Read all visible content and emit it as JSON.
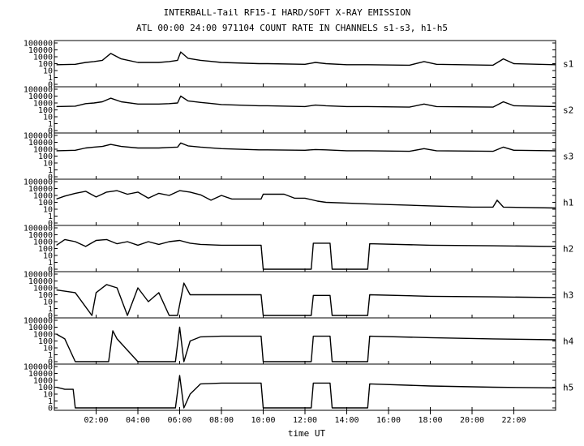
{
  "title": "INTERBALL-Tail RF15-I HARD/SOFT X-RAY EMISSION",
  "subtitle": "ATL 00:00 24:00 971104  COUNT RATE IN CHANNELS s1-s3, h1-h5",
  "chart_data": {
    "type": "line",
    "title": "INTERBALL-Tail RF15-I HARD/SOFT X-RAY EMISSION",
    "subtitle": "ATL 00:00 24:00 971104  COUNT RATE IN CHANNELS s1-s3, h1-h5",
    "xlabel": "time UT",
    "x_unit": "hours UT",
    "xlim": [
      0,
      24
    ],
    "x_ticks": [
      {
        "value": 2,
        "label": "02:00"
      },
      {
        "value": 4,
        "label": "04:00"
      },
      {
        "value": 6,
        "label": "06:00"
      },
      {
        "value": 8,
        "label": "08:00"
      },
      {
        "value": 10,
        "label": "10:00"
      },
      {
        "value": 12,
        "label": "12:00"
      },
      {
        "value": 14,
        "label": "14:00"
      },
      {
        "value": 16,
        "label": "16:00"
      },
      {
        "value": 18,
        "label": "18:00"
      },
      {
        "value": 20,
        "label": "20:00"
      },
      {
        "value": 22,
        "label": "22:00"
      }
    ],
    "y_scale": "log",
    "ylim": [
      0,
      100000
    ],
    "y_ticks": [
      {
        "value": 100000,
        "label": "100000"
      },
      {
        "value": 10000,
        "label": "10000"
      },
      {
        "value": 1000,
        "label": "1000"
      },
      {
        "value": 100,
        "label": "100"
      },
      {
        "value": 10,
        "label": "10"
      },
      {
        "value": 1,
        "label": "1"
      },
      {
        "value": 0,
        "label": "0"
      }
    ],
    "grid": false,
    "series": [
      {
        "name": "s1",
        "x": [
          0.1,
          1,
          1.5,
          1.9,
          2.3,
          2.7,
          3.2,
          4,
          5,
          5.5,
          5.9,
          6.05,
          6.4,
          7,
          8,
          9.8,
          10.2,
          12,
          12.5,
          13,
          14,
          15,
          17,
          17.7,
          18.3,
          21,
          21.5,
          22,
          24
        ],
        "y": [
          70,
          80,
          150,
          200,
          300,
          3000,
          500,
          150,
          150,
          200,
          300,
          5000,
          600,
          300,
          150,
          100,
          100,
          80,
          150,
          100,
          70,
          70,
          60,
          200,
          80,
          60,
          500,
          100,
          70
        ]
      },
      {
        "name": "s2",
        "x": [
          0.1,
          1,
          1.5,
          1.9,
          2.3,
          2.7,
          3.2,
          4,
          5,
          5.5,
          5.9,
          6.05,
          6.4,
          7,
          8,
          9.8,
          10.2,
          12,
          12.5,
          13,
          14,
          15,
          17,
          17.7,
          18.3,
          21,
          21.5,
          22,
          24
        ],
        "y": [
          300,
          350,
          800,
          1000,
          1500,
          5000,
          1500,
          700,
          700,
          800,
          1000,
          10000,
          2000,
          1200,
          600,
          400,
          400,
          300,
          500,
          400,
          300,
          300,
          250,
          700,
          300,
          250,
          1500,
          400,
          300
        ]
      },
      {
        "name": "s3",
        "x": [
          0.1,
          1,
          1.5,
          1.9,
          2.3,
          2.7,
          3.2,
          4,
          5,
          5.5,
          5.9,
          6.05,
          6.4,
          7,
          8,
          9.8,
          10.2,
          12,
          12.5,
          13,
          14,
          15,
          17,
          17.7,
          18.3,
          21,
          21.5,
          22,
          24
        ],
        "y": [
          600,
          700,
          1500,
          2000,
          2500,
          5000,
          2500,
          1500,
          1500,
          1800,
          2000,
          8000,
          3000,
          2000,
          1200,
          800,
          800,
          700,
          900,
          800,
          600,
          600,
          500,
          1200,
          600,
          500,
          2000,
          700,
          600
        ]
      },
      {
        "name": "h1",
        "x": [
          0.1,
          0.5,
          1,
          1.5,
          2,
          2.5,
          3,
          3.5,
          4,
          4.5,
          5,
          5.5,
          6,
          6.5,
          7,
          7.5,
          8,
          8.5,
          9,
          9.9,
          10,
          11,
          11.5,
          12,
          12.6,
          13,
          15,
          18,
          20,
          21,
          21.2,
          21.5,
          24
        ],
        "y": [
          300,
          800,
          2000,
          4000,
          600,
          3000,
          5000,
          1500,
          3000,
          400,
          2000,
          1000,
          5000,
          3000,
          1200,
          200,
          1000,
          300,
          300,
          300,
          1500,
          1500,
          400,
          400,
          150,
          100,
          60,
          30,
          20,
          20,
          200,
          20,
          15
        ]
      },
      {
        "name": "h2",
        "x": [
          0.1,
          0.5,
          1,
          1.5,
          2,
          2.5,
          3,
          3.5,
          4,
          4.5,
          5,
          5.5,
          6,
          6.5,
          7,
          8,
          9,
          9.9,
          10,
          12.3,
          12.4,
          13.2,
          13.3,
          15,
          15.1,
          18,
          21,
          24
        ],
        "y": [
          300,
          2000,
          1000,
          200,
          1500,
          2000,
          500,
          1000,
          300,
          1000,
          400,
          1000,
          1500,
          600,
          400,
          300,
          300,
          300,
          0,
          0,
          600,
          600,
          0,
          0,
          500,
          300,
          250,
          200
        ]
      },
      {
        "name": "h3",
        "x": [
          0.1,
          1,
          1.8,
          2,
          2.5,
          3,
          3.5,
          4,
          4.5,
          5,
          5.5,
          5.9,
          6.2,
          6.5,
          7,
          8,
          9,
          9.9,
          10,
          12.3,
          12.4,
          13.2,
          13.3,
          15,
          15.1,
          18,
          21,
          24
        ],
        "y": [
          500,
          200,
          0,
          200,
          3000,
          1000,
          0,
          1000,
          10,
          200,
          0,
          0,
          5000,
          100,
          100,
          100,
          100,
          100,
          0,
          0,
          80,
          80,
          0,
          0,
          100,
          60,
          50,
          40
        ]
      },
      {
        "name": "h4",
        "x": [
          0.1,
          0.5,
          1,
          1.5,
          2,
          2.3,
          2.6,
          2.8,
          3,
          4,
          5,
          5.8,
          6,
          6.2,
          6.5,
          7,
          8,
          9,
          9.9,
          10,
          12.3,
          12.4,
          13.2,
          13.3,
          15,
          15.1,
          18,
          21,
          24
        ],
        "y": [
          1000,
          200,
          0,
          0,
          0,
          0,
          0,
          3000,
          200,
          0,
          0,
          0,
          10000,
          0,
          100,
          400,
          500,
          500,
          500,
          0,
          0,
          500,
          500,
          0,
          0,
          500,
          300,
          200,
          150
        ]
      },
      {
        "name": "h5",
        "x": [
          0.1,
          0.5,
          0.9,
          1,
          1.3,
          1.5,
          2,
          4,
          5.8,
          6,
          6.2,
          6.5,
          7,
          8,
          9,
          9.9,
          10,
          12.3,
          12.4,
          13.2,
          13.3,
          15,
          15.1,
          18,
          21,
          24
        ],
        "y": [
          100,
          50,
          50,
          0,
          0,
          0,
          0,
          0,
          0,
          5000,
          0,
          10,
          300,
          400,
          400,
          400,
          0,
          0,
          400,
          400,
          0,
          0,
          300,
          150,
          100,
          80
        ]
      }
    ]
  }
}
